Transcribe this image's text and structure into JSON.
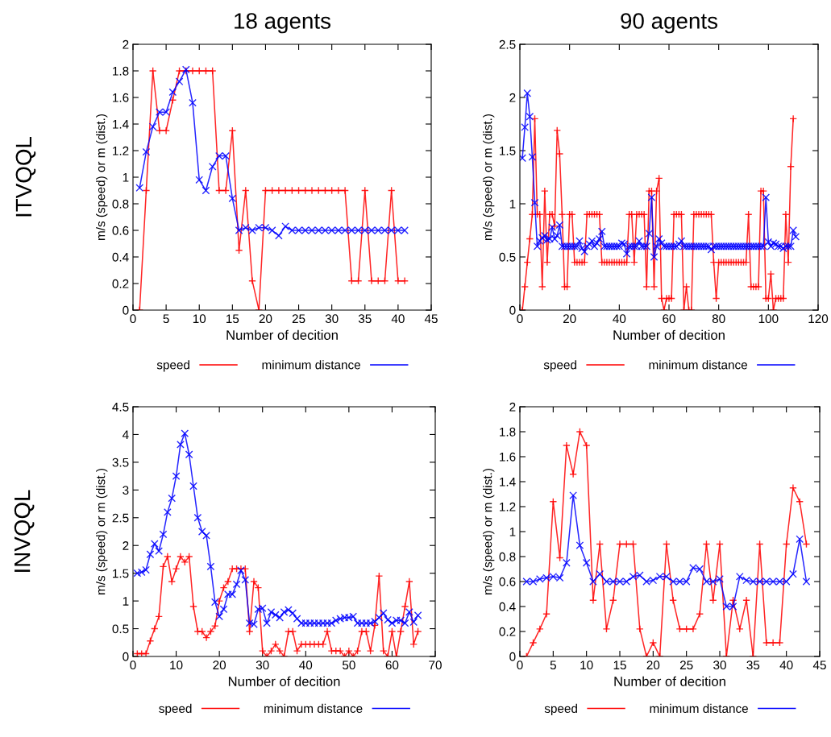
{
  "chart_data": [
    {
      "type": "line",
      "title": "18 agents",
      "annotations": [
        "ITVQQL"
      ],
      "xlabel": "Number of decition",
      "ylabel": "m/s (speed) or m (dist.)",
      "xlim": [
        0,
        45
      ],
      "xticks": [
        0,
        5,
        10,
        15,
        20,
        25,
        30,
        35,
        40,
        45
      ],
      "ylim": [
        0,
        2
      ],
      "yticks": [
        0,
        0.2,
        0.4,
        0.6,
        0.8,
        1,
        1.2,
        1.4,
        1.6,
        1.8,
        2
      ],
      "legend": "bottom",
      "series": [
        {
          "name": "speed",
          "color": "#ff0000",
          "marker": "plus",
          "x": [
            1,
            2,
            3,
            4,
            5,
            6,
            7,
            8,
            9,
            10,
            11,
            12,
            13,
            14,
            15,
            16,
            17,
            18,
            19,
            20,
            21,
            22,
            23,
            24,
            25,
            26,
            27,
            28,
            29,
            30,
            31,
            32,
            33,
            34,
            35,
            36,
            37,
            38,
            39,
            40,
            41
          ],
          "values": [
            0,
            0.9,
            1.8,
            1.35,
            1.35,
            1.58,
            1.8,
            1.8,
            1.8,
            1.8,
            1.8,
            1.8,
            0.9,
            0.9,
            1.35,
            0.45,
            0.9,
            0.22,
            0,
            0.9,
            0.9,
            0.9,
            0.9,
            0.9,
            0.9,
            0.9,
            0.9,
            0.9,
            0.9,
            0.9,
            0.9,
            0.9,
            0.22,
            0.22,
            0.9,
            0.22,
            0.22,
            0.22,
            0.9,
            0.22,
            0.22
          ]
        },
        {
          "name": "minimum distance",
          "color": "#0000ff",
          "marker": "cross",
          "x": [
            1,
            2,
            3,
            4,
            5,
            6,
            7,
            8,
            9,
            10,
            11,
            12,
            13,
            14,
            15,
            16,
            17,
            18,
            19,
            20,
            21,
            22,
            23,
            24,
            25,
            26,
            27,
            28,
            29,
            30,
            31,
            32,
            33,
            34,
            35,
            36,
            37,
            38,
            39,
            40,
            41
          ],
          "values": [
            0.92,
            1.19,
            1.38,
            1.49,
            1.49,
            1.64,
            1.72,
            1.81,
            1.56,
            0.98,
            0.9,
            1.08,
            1.16,
            1.16,
            0.84,
            0.6,
            0.62,
            0.6,
            0.62,
            0.62,
            0.6,
            0.56,
            0.63,
            0.6,
            0.6,
            0.6,
            0.6,
            0.6,
            0.6,
            0.6,
            0.6,
            0.6,
            0.6,
            0.6,
            0.6,
            0.6,
            0.6,
            0.6,
            0.6,
            0.6,
            0.6
          ]
        }
      ]
    },
    {
      "type": "line",
      "title": "90 agents",
      "xlabel": "Number of decition",
      "ylabel": "m/s (speed) or m (dist.)",
      "xlim": [
        0,
        120
      ],
      "xticks": [
        0,
        20,
        40,
        60,
        80,
        100,
        120
      ],
      "ylim": [
        0,
        2.5
      ],
      "yticks": [
        0,
        0.5,
        1,
        1.5,
        2,
        2.5
      ],
      "legend": "bottom",
      "series": [
        {
          "name": "speed",
          "color": "#ff0000",
          "marker": "plus",
          "x": [
            1,
            2,
            3,
            4,
            5,
            6,
            7,
            8,
            9,
            10,
            11,
            12,
            13,
            14,
            15,
            16,
            17,
            18,
            19,
            20,
            21,
            22,
            23,
            24,
            25,
            26,
            27,
            28,
            29,
            30,
            31,
            32,
            33,
            34,
            35,
            36,
            37,
            38,
            39,
            40,
            41,
            42,
            43,
            44,
            45,
            46,
            47,
            48,
            49,
            50,
            51,
            52,
            53,
            54,
            55,
            56,
            57,
            58,
            59,
            60,
            61,
            62,
            63,
            64,
            65,
            66,
            67,
            68,
            69,
            70,
            71,
            72,
            73,
            74,
            75,
            76,
            77,
            78,
            79,
            80,
            81,
            82,
            83,
            84,
            85,
            86,
            87,
            88,
            89,
            90,
            91,
            92,
            93,
            94,
            95,
            96,
            97,
            98,
            99,
            100,
            101,
            102,
            103,
            104,
            105,
            106,
            107,
            108,
            109,
            110
          ],
          "values": [
            0,
            0.22,
            0.45,
            0.67,
            0.9,
            1.8,
            0.9,
            0.9,
            0.22,
            1.12,
            0.45,
            0.9,
            0.9,
            0.79,
            1.69,
            1.47,
            0.9,
            0.22,
            0.22,
            0.9,
            0.9,
            0.45,
            0.45,
            0.45,
            0.45,
            0.45,
            0.9,
            0.9,
            0.9,
            0.9,
            0.9,
            0.9,
            0.45,
            0.45,
            0.45,
            0.45,
            0.45,
            0.45,
            0.45,
            0.45,
            0.45,
            0.45,
            0.45,
            0.9,
            0.9,
            0.45,
            0.9,
            0.9,
            0.9,
            0.9,
            0.22,
            1.12,
            1.12,
            0.22,
            1.12,
            1.24,
            0.11,
            0,
            0.11,
            0.11,
            0.11,
            0.9,
            0.9,
            0.9,
            0.9,
            0,
            0.22,
            0,
            0,
            0.9,
            0.9,
            0.9,
            0.9,
            0.9,
            0.9,
            0.9,
            0.9,
            0.45,
            0.11,
            0.45,
            0.45,
            0.45,
            0.45,
            0.45,
            0.45,
            0.45,
            0.45,
            0.45,
            0.45,
            0.45,
            0.45,
            0.9,
            0.22,
            0.22,
            0.22,
            0.22,
            1.12,
            1.12,
            0.11,
            0.11,
            0.34,
            0,
            0.11,
            0.11,
            0.11,
            0.11,
            0.9,
            0.45,
            1.35,
            1.8
          ]
        },
        {
          "name": "minimum distance",
          "color": "#0000ff",
          "marker": "cross",
          "x": [
            1,
            2,
            3,
            4,
            5,
            6,
            7,
            8,
            9,
            10,
            11,
            12,
            13,
            14,
            15,
            16,
            17,
            18,
            19,
            20,
            21,
            22,
            23,
            24,
            25,
            26,
            27,
            28,
            29,
            30,
            31,
            32,
            33,
            34,
            35,
            36,
            37,
            38,
            39,
            40,
            41,
            42,
            43,
            44,
            45,
            46,
            47,
            48,
            49,
            50,
            51,
            52,
            53,
            54,
            55,
            56,
            57,
            58,
            59,
            60,
            61,
            62,
            63,
            64,
            65,
            66,
            67,
            68,
            69,
            70,
            71,
            72,
            73,
            74,
            75,
            76,
            77,
            78,
            79,
            80,
            81,
            82,
            83,
            84,
            85,
            86,
            87,
            88,
            89,
            90,
            91,
            92,
            93,
            94,
            95,
            96,
            97,
            98,
            99,
            100,
            101,
            102,
            103,
            104,
            105,
            106,
            107,
            108,
            109,
            110,
            111
          ],
          "values": [
            1.43,
            1.72,
            2.04,
            1.82,
            1.44,
            1.01,
            0.6,
            0.65,
            0.68,
            0.7,
            0.66,
            0.67,
            0.78,
            0.67,
            0.7,
            0.8,
            0.6,
            0.6,
            0.6,
            0.6,
            0.6,
            0.6,
            0.6,
            0.65,
            0.58,
            0.55,
            0.6,
            0.62,
            0.65,
            0.6,
            0.63,
            0.67,
            0.74,
            0.6,
            0.6,
            0.6,
            0.6,
            0.6,
            0.6,
            0.6,
            0.63,
            0.62,
            0.53,
            0.6,
            0.6,
            0.6,
            0.6,
            0.65,
            0.6,
            0.6,
            0.6,
            0.72,
            1.06,
            0.5,
            0.6,
            0.67,
            0.63,
            0.6,
            0.6,
            0.6,
            0.6,
            0.6,
            0.6,
            0.62,
            0.65,
            0.6,
            0.6,
            0.6,
            0.6,
            0.6,
            0.6,
            0.6,
            0.6,
            0.6,
            0.6,
            0.6,
            0.57,
            0.6,
            0.6,
            0.6,
            0.6,
            0.6,
            0.6,
            0.6,
            0.6,
            0.6,
            0.6,
            0.6,
            0.6,
            0.6,
            0.6,
            0.6,
            0.6,
            0.6,
            0.6,
            0.6,
            0.6,
            0.6,
            1.06,
            0.64,
            0.6,
            0.63,
            0.62,
            0.6,
            0.6,
            0.58,
            0.6,
            0.6,
            0.6,
            0.75,
            0.69
          ]
        }
      ]
    },
    {
      "type": "line",
      "annotations": [
        "INVQQL"
      ],
      "xlabel": "Number of decition",
      "ylabel": "m/s (speed) or m (dist.)",
      "xlim": [
        0,
        70
      ],
      "xticks": [
        0,
        10,
        20,
        30,
        40,
        50,
        60,
        70
      ],
      "ylim": [
        0,
        4.5
      ],
      "yticks": [
        0,
        0.5,
        1,
        1.5,
        2,
        2.5,
        3,
        3.5,
        4,
        4.5
      ],
      "legend": "bottom",
      "series": [
        {
          "name": "speed",
          "color": "#ff0000",
          "marker": "plus",
          "x": [
            1,
            2,
            3,
            4,
            5,
            6,
            7,
            8,
            9,
            10,
            11,
            12,
            13,
            14,
            15,
            16,
            17,
            18,
            19,
            20,
            21,
            22,
            23,
            24,
            25,
            26,
            27,
            28,
            29,
            30,
            31,
            32,
            33,
            34,
            35,
            36,
            37,
            38,
            39,
            40,
            41,
            42,
            43,
            44,
            45,
            46,
            47,
            48,
            49,
            50,
            51,
            52,
            53,
            54,
            55,
            56,
            57,
            58,
            59,
            60,
            61,
            62,
            63,
            64,
            65,
            66
          ],
          "values": [
            0.05,
            0.05,
            0.05,
            0.28,
            0.5,
            0.72,
            1.62,
            1.8,
            1.35,
            1.58,
            1.8,
            1.7,
            1.8,
            0.9,
            0.45,
            0.45,
            0.34,
            0.45,
            0.55,
            1.0,
            1.24,
            1.35,
            1.58,
            1.58,
            1.58,
            1.58,
            0.45,
            1.35,
            1.24,
            0.1,
            0,
            0.1,
            0.22,
            0.1,
            0,
            0.45,
            0.45,
            0.1,
            0.22,
            0.22,
            0.22,
            0.22,
            0.22,
            0.22,
            0.45,
            0.1,
            0.1,
            0.1,
            0,
            0.1,
            0,
            0.1,
            0.45,
            0.45,
            0.1,
            0.56,
            1.45,
            0.1,
            0,
            0.45,
            0,
            0.45,
            0.9,
            1.35,
            0.22,
            0.45
          ]
        },
        {
          "name": "minimum distance",
          "color": "#0000ff",
          "marker": "cross",
          "x": [
            1,
            2,
            3,
            4,
            5,
            6,
            7,
            8,
            9,
            10,
            11,
            12,
            13,
            14,
            15,
            16,
            17,
            18,
            19,
            20,
            21,
            22,
            23,
            24,
            25,
            26,
            27,
            28,
            29,
            30,
            31,
            32,
            33,
            34,
            35,
            36,
            37,
            38,
            39,
            40,
            41,
            42,
            43,
            44,
            45,
            46,
            47,
            48,
            49,
            50,
            51,
            52,
            53,
            54,
            55,
            56,
            57,
            58,
            59,
            60,
            61,
            62,
            63,
            64,
            65,
            66
          ],
          "values": [
            1.5,
            1.52,
            1.56,
            1.84,
            2.03,
            1.9,
            2.2,
            2.6,
            2.85,
            3.25,
            3.82,
            4.02,
            3.64,
            3.07,
            2.5,
            2.25,
            2.18,
            1.62,
            0.98,
            0.72,
            0.85,
            1.12,
            1.12,
            1.3,
            1.55,
            1.38,
            0.6,
            0.58,
            0.85,
            0.87,
            0.6,
            0.8,
            0.75,
            0.7,
            0.8,
            0.84,
            0.78,
            0.68,
            0.6,
            0.6,
            0.6,
            0.6,
            0.6,
            0.6,
            0.6,
            0.6,
            0.65,
            0.68,
            0.7,
            0.7,
            0.72,
            0.6,
            0.6,
            0.6,
            0.6,
            0.63,
            0.7,
            0.78,
            0.66,
            0.6,
            0.65,
            0.65,
            0.6,
            0.8,
            0.62,
            0.74
          ]
        }
      ]
    },
    {
      "type": "line",
      "xlabel": "Number of decition",
      "ylabel": "m/s (speed) or m (dist.)",
      "xlim": [
        0,
        45
      ],
      "xticks": [
        0,
        5,
        10,
        15,
        20,
        25,
        30,
        35,
        40,
        45
      ],
      "ylim": [
        0,
        2
      ],
      "yticks": [
        0,
        0.2,
        0.4,
        0.6,
        0.8,
        1,
        1.2,
        1.4,
        1.6,
        1.8,
        2
      ],
      "legend": "bottom",
      "series": [
        {
          "name": "speed",
          "color": "#ff0000",
          "marker": "plus",
          "x": [
            1,
            2,
            3,
            4,
            5,
            6,
            7,
            8,
            9,
            10,
            11,
            12,
            13,
            14,
            15,
            16,
            17,
            18,
            19,
            20,
            21,
            22,
            23,
            24,
            25,
            26,
            27,
            28,
            29,
            30,
            31,
            32,
            33,
            34,
            35,
            36,
            37,
            38,
            39,
            40,
            41,
            42,
            43
          ],
          "values": [
            0,
            0.11,
            0.22,
            0.34,
            1.24,
            0.79,
            1.69,
            1.46,
            1.8,
            1.69,
            0.45,
            0.9,
            0.22,
            0.45,
            0.9,
            0.9,
            0.9,
            0.22,
            0,
            0.11,
            0,
            0.9,
            0.45,
            0.22,
            0.22,
            0.22,
            0.34,
            0.9,
            0.45,
            0.9,
            0,
            0.45,
            0.22,
            0.45,
            0,
            0.9,
            0.11,
            0.11,
            0.11,
            0.9,
            1.35,
            1.24,
            0.9
          ]
        },
        {
          "name": "minimum distance",
          "color": "#0000ff",
          "marker": "cross",
          "x": [
            1,
            2,
            3,
            4,
            5,
            6,
            7,
            8,
            9,
            10,
            11,
            12,
            13,
            14,
            15,
            16,
            17,
            18,
            19,
            20,
            21,
            22,
            23,
            24,
            25,
            26,
            27,
            28,
            29,
            30,
            31,
            32,
            33,
            34,
            35,
            36,
            37,
            38,
            39,
            40,
            41,
            42,
            43
          ],
          "values": [
            0.6,
            0.6,
            0.62,
            0.63,
            0.64,
            0.63,
            0.75,
            1.29,
            0.89,
            0.75,
            0.6,
            0.66,
            0.6,
            0.6,
            0.6,
            0.6,
            0.64,
            0.65,
            0.6,
            0.61,
            0.64,
            0.64,
            0.6,
            0.6,
            0.6,
            0.71,
            0.7,
            0.6,
            0.6,
            0.62,
            0.4,
            0.4,
            0.64,
            0.61,
            0.6,
            0.6,
            0.6,
            0.6,
            0.6,
            0.6,
            0.66,
            0.94,
            0.6
          ]
        }
      ]
    }
  ]
}
